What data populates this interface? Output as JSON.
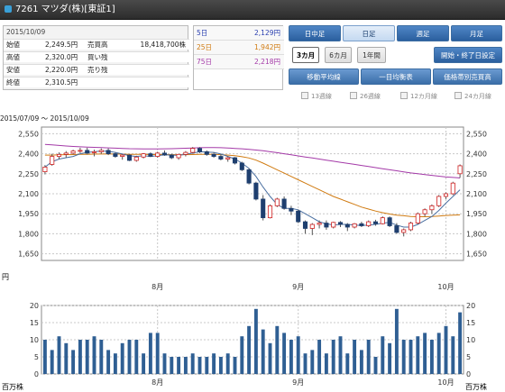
{
  "header": {
    "title": "7261 マツダ(株)[東証1]"
  },
  "quote": {
    "date": "2015/10/09",
    "rows": [
      {
        "l1": "始値",
        "v1": "2,249.5円",
        "l2": "売買高",
        "v2": "18,418,700株"
      },
      {
        "l1": "高値",
        "v1": "2,320.0円",
        "l2": "買い残",
        "v2": ""
      },
      {
        "l1": "安値",
        "v1": "2,220.0円",
        "l2": "売り残",
        "v2": ""
      },
      {
        "l1": "終値",
        "v1": "2,310.5円",
        "l2": "",
        "v2": ""
      }
    ]
  },
  "moving_averages": [
    {
      "label": "5日",
      "value": "2,129円",
      "color": "#2a3fb0"
    },
    {
      "label": "25日",
      "value": "1,942円",
      "color": "#d07a10"
    },
    {
      "label": "75日",
      "value": "2,218円",
      "color": "#a43aa8"
    }
  ],
  "period_tabs": [
    "日中足",
    "日足",
    "週足",
    "月足"
  ],
  "active_period_tab": "日足",
  "range_buttons": [
    "3カ月",
    "6カ月",
    "1年間"
  ],
  "selected_range": "3カ月",
  "date_setting_button": "開始・終了日設定",
  "indicator_tabs": [
    "移動平均線",
    "一目均衡表",
    "価格帯別売買高"
  ],
  "ma_checkboxes": [
    "13週線",
    "26週線",
    "12カ月線",
    "24カ月線"
  ],
  "period_range_label": "2015/07/09 〜 2015/10/09",
  "chart": {
    "yen_unit": "円",
    "volume_unit": "百万株",
    "price_ticks": [
      "2,550",
      "2,400",
      "2,250",
      "2,100",
      "1,950",
      "1,800",
      "1,650"
    ],
    "price_tick_values": [
      2550,
      2400,
      2250,
      2100,
      1950,
      1800,
      1650
    ],
    "volume_ticks": [
      "20",
      "15",
      "10",
      "5",
      "0"
    ],
    "volume_tick_values": [
      20,
      15,
      10,
      5,
      0
    ],
    "month_labels": [
      {
        "label": "8月",
        "index": 16
      },
      {
        "label": "9月",
        "index": 36
      },
      {
        "label": "10月",
        "index": 57
      }
    ]
  },
  "chart_data": {
    "type": "candlestick",
    "title": "",
    "price_ylim": [
      1600,
      2600
    ],
    "volume_ylim": [
      0,
      20
    ],
    "ohlc": [
      [
        2265,
        2315,
        2245,
        2300
      ],
      [
        2320,
        2400,
        2310,
        2380
      ],
      [
        2380,
        2410,
        2360,
        2395
      ],
      [
        2395,
        2420,
        2370,
        2405
      ],
      [
        2405,
        2430,
        2395,
        2420
      ],
      [
        2420,
        2445,
        2405,
        2425
      ],
      [
        2425,
        2445,
        2395,
        2405
      ],
      [
        2410,
        2430,
        2380,
        2415
      ],
      [
        2415,
        2440,
        2400,
        2425
      ],
      [
        2425,
        2440,
        2390,
        2400
      ],
      [
        2400,
        2410,
        2370,
        2380
      ],
      [
        2380,
        2395,
        2355,
        2390
      ],
      [
        2390,
        2395,
        2345,
        2350
      ],
      [
        2350,
        2385,
        2340,
        2375
      ],
      [
        2375,
        2405,
        2365,
        2400
      ],
      [
        2400,
        2410,
        2375,
        2380
      ],
      [
        2380,
        2415,
        2370,
        2405
      ],
      [
        2405,
        2425,
        2385,
        2390
      ],
      [
        2390,
        2400,
        2360,
        2370
      ],
      [
        2370,
        2400,
        2355,
        2395
      ],
      [
        2395,
        2420,
        2380,
        2410
      ],
      [
        2410,
        2450,
        2400,
        2440
      ],
      [
        2440,
        2450,
        2405,
        2415
      ],
      [
        2415,
        2425,
        2385,
        2395
      ],
      [
        2395,
        2410,
        2370,
        2380
      ],
      [
        2380,
        2395,
        2350,
        2360
      ],
      [
        2360,
        2380,
        2340,
        2370
      ],
      [
        2370,
        2375,
        2320,
        2330
      ],
      [
        2330,
        2340,
        2270,
        2280
      ],
      [
        2280,
        2290,
        2170,
        2180
      ],
      [
        2180,
        2190,
        2050,
        2060
      ],
      [
        2060,
        2090,
        1900,
        1920
      ],
      [
        1920,
        2020,
        1915,
        2010
      ],
      [
        2010,
        2070,
        2000,
        2060
      ],
      [
        2060,
        2080,
        1980,
        1990
      ],
      [
        1990,
        2010,
        1940,
        1970
      ],
      [
        1970,
        1980,
        1880,
        1890
      ],
      [
        1890,
        1900,
        1800,
        1840
      ],
      [
        1840,
        1880,
        1790,
        1870
      ],
      [
        1870,
        1900,
        1840,
        1880
      ],
      [
        1880,
        1900,
        1830,
        1850
      ],
      [
        1850,
        1890,
        1840,
        1885
      ],
      [
        1885,
        1895,
        1850,
        1870
      ],
      [
        1870,
        1880,
        1820,
        1850
      ],
      [
        1850,
        1880,
        1840,
        1875
      ],
      [
        1875,
        1890,
        1850,
        1860
      ],
      [
        1860,
        1900,
        1850,
        1890
      ],
      [
        1890,
        1905,
        1860,
        1875
      ],
      [
        1875,
        1930,
        1870,
        1920
      ],
      [
        1920,
        1930,
        1850,
        1860
      ],
      [
        1860,
        1880,
        1800,
        1810
      ],
      [
        1810,
        1840,
        1780,
        1830
      ],
      [
        1830,
        1890,
        1820,
        1880
      ],
      [
        1880,
        1960,
        1870,
        1950
      ],
      [
        1950,
        1990,
        1930,
        1980
      ],
      [
        1980,
        2020,
        1950,
        2010
      ],
      [
        2010,
        2090,
        2000,
        2080
      ],
      [
        2080,
        2110,
        2060,
        2100
      ],
      [
        2100,
        2190,
        2090,
        2180
      ],
      [
        2250,
        2320,
        2220,
        2310
      ]
    ],
    "ma5": [
      2300,
      2340,
      2360,
      2370,
      2380,
      2400,
      2410,
      2415,
      2420,
      2418,
      2410,
      2398,
      2385,
      2380,
      2385,
      2380,
      2385,
      2392,
      2390,
      2388,
      2395,
      2405,
      2415,
      2413,
      2410,
      2398,
      2380,
      2360,
      2330,
      2290,
      2230,
      2150,
      2080,
      2020,
      1990,
      1990,
      1980,
      1950,
      1920,
      1890,
      1875,
      1865,
      1870,
      1870,
      1865,
      1862,
      1865,
      1870,
      1880,
      1885,
      1865,
      1850,
      1850,
      1870,
      1900,
      1930,
      1975,
      2030,
      2080,
      2130
    ],
    "ma25": [
      2390,
      2390,
      2392,
      2393,
      2394,
      2395,
      2396,
      2397,
      2398,
      2398,
      2398,
      2397,
      2396,
      2395,
      2395,
      2394,
      2394,
      2394,
      2393,
      2393,
      2393,
      2394,
      2395,
      2395,
      2395,
      2393,
      2390,
      2385,
      2378,
      2368,
      2352,
      2330,
      2305,
      2280,
      2255,
      2230,
      2205,
      2180,
      2155,
      2130,
      2105,
      2080,
      2060,
      2040,
      2020,
      2000,
      1985,
      1970,
      1958,
      1948,
      1940,
      1935,
      1930,
      1928,
      1928,
      1930,
      1933,
      1937,
      1940,
      1942
    ],
    "ma75": [
      2470,
      2466,
      2462,
      2458,
      2455,
      2452,
      2450,
      2448,
      2446,
      2444,
      2442,
      2440,
      2438,
      2437,
      2436,
      2436,
      2436,
      2437,
      2438,
      2439,
      2441,
      2443,
      2445,
      2446,
      2446,
      2445,
      2443,
      2440,
      2437,
      2433,
      2428,
      2422,
      2415,
      2408,
      2400,
      2392,
      2384,
      2376,
      2368,
      2360,
      2352,
      2344,
      2336,
      2328,
      2320,
      2312,
      2304,
      2296,
      2288,
      2280,
      2272,
      2264,
      2256,
      2250,
      2244,
      2238,
      2232,
      2226,
      2222,
      2218
    ],
    "volume": [
      10,
      7,
      11,
      9,
      7,
      10,
      10,
      11,
      10,
      7,
      6,
      9,
      10,
      10,
      6,
      12,
      12,
      6,
      5,
      5,
      5,
      6,
      5,
      5,
      6,
      5,
      6,
      5,
      11,
      14,
      19,
      13,
      9,
      14,
      12,
      10,
      11,
      6,
      7,
      10,
      6,
      10,
      11,
      6,
      10,
      7,
      10,
      5,
      11,
      9,
      19,
      10,
      10,
      11,
      12,
      10,
      12,
      14,
      11,
      18
    ]
  }
}
